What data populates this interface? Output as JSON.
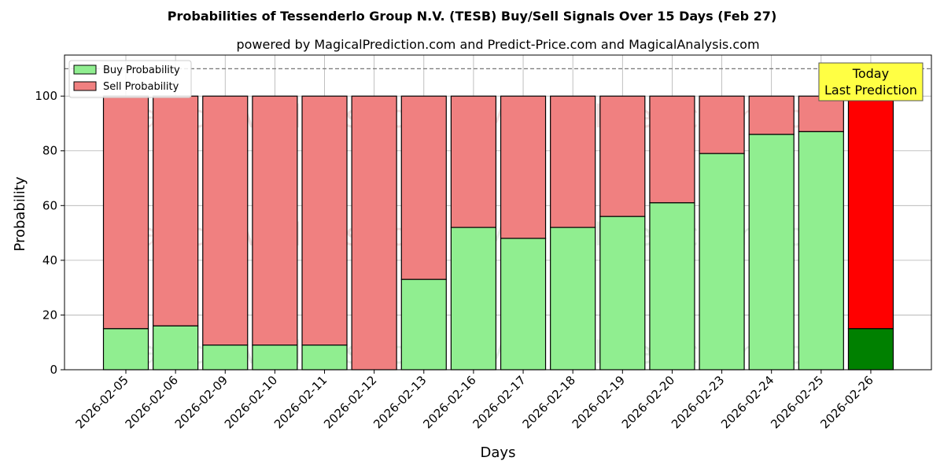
{
  "chart_data": {
    "type": "bar",
    "stacked": true,
    "title": "Probabilities of Tessenderlo Group N.V. (TESB) Buy/Sell Signals Over 15 Days (Feb 27)",
    "subtitle": "powered by MagicalPrediction.com and Predict-Price.com and MagicalAnalysis.com",
    "xlabel": "Days",
    "ylabel": "Probability",
    "ylim": [
      0,
      115
    ],
    "yticks": [
      0,
      20,
      40,
      60,
      80,
      100
    ],
    "grid": true,
    "legend_position": "top-left",
    "reference_line": 110,
    "categories": [
      "2026-02-05",
      "2026-02-06",
      "2026-02-09",
      "2026-02-10",
      "2026-02-11",
      "2026-02-12",
      "2026-02-13",
      "2026-02-16",
      "2026-02-17",
      "2026-02-18",
      "2026-02-19",
      "2026-02-20",
      "2026-02-23",
      "2026-02-24",
      "2026-02-25",
      "2026-02-26"
    ],
    "series": [
      {
        "name": "Buy Probability",
        "color": "#90ee90",
        "values": [
          15,
          16,
          9,
          9,
          9,
          0,
          33,
          52,
          48,
          52,
          56,
          61,
          79,
          86,
          87,
          15
        ]
      },
      {
        "name": "Sell Probability",
        "color": "#f08080",
        "values": [
          85,
          84,
          91,
          91,
          91,
          100,
          67,
          48,
          52,
          48,
          44,
          39,
          21,
          14,
          13,
          85
        ]
      }
    ],
    "highlight": {
      "index": 15,
      "buy_color": "#008000",
      "sell_color": "#ff0000",
      "label_line1": "Today",
      "label_line2": "Last Prediction",
      "box_color": "#ffff44"
    },
    "watermarks": [
      "MagicalAnalysis.com",
      "MagicalPrediction.com"
    ]
  }
}
